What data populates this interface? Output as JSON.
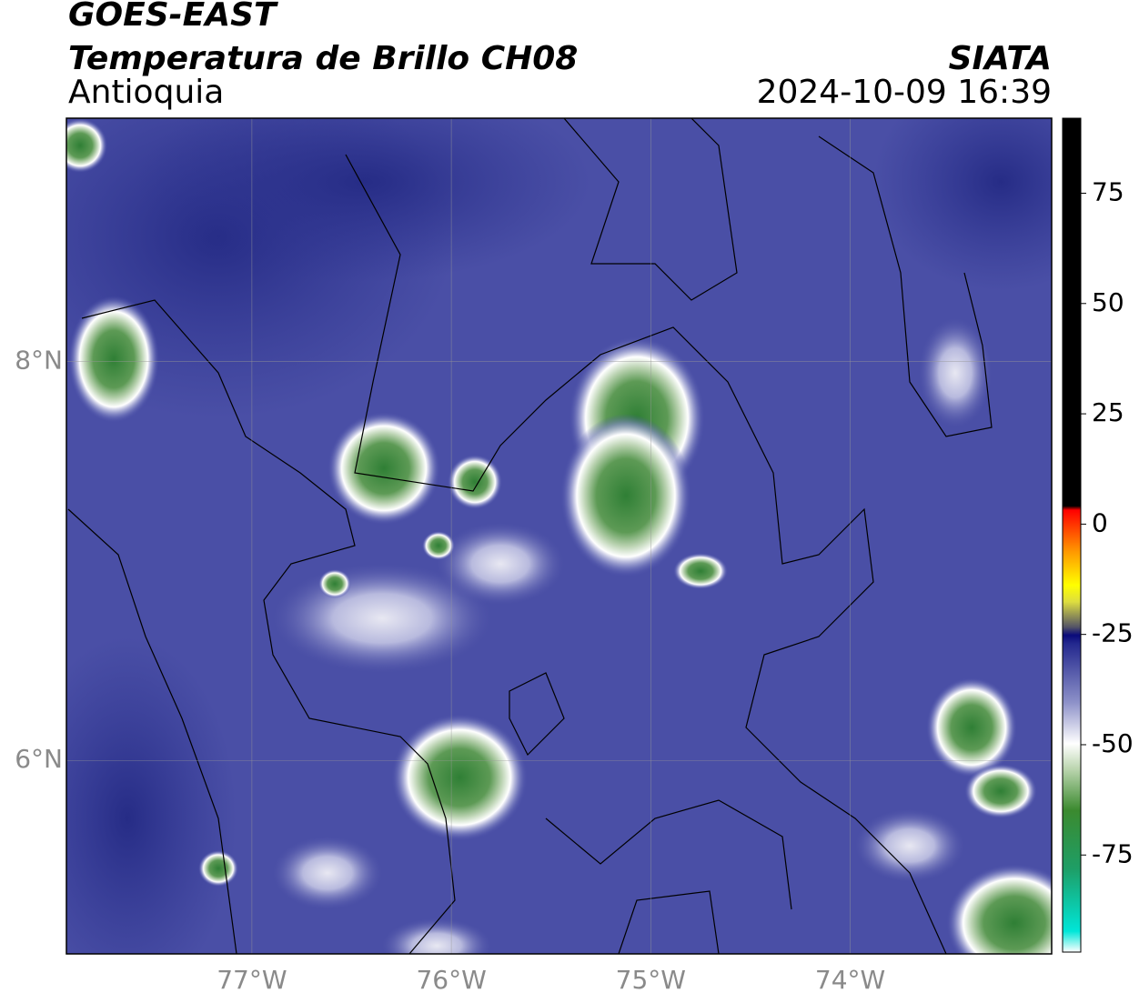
{
  "header": {
    "title": "GOES-EAST",
    "subtitle": "Temperatura de Brillo CH08",
    "region": "Antioquia",
    "source": "SIATA",
    "timestamp": "2024-10-09 16:39"
  },
  "map": {
    "lon_range": [
      -77.93,
      -72.99
    ],
    "lat_range": [
      5.03,
      9.22
    ],
    "lon_ticks": [
      {
        "value": -77,
        "label": "77°W"
      },
      {
        "value": -76,
        "label": "76°W"
      },
      {
        "value": -75,
        "label": "75°W"
      },
      {
        "value": -74,
        "label": "74°W"
      }
    ],
    "lat_ticks": [
      {
        "value": 8,
        "label": "8°N"
      },
      {
        "value": 6,
        "label": "6°N"
      }
    ]
  },
  "colorbar": {
    "range": [
      -97,
      92
    ],
    "ticks": [
      75,
      50,
      25,
      0,
      -25,
      -50,
      -75
    ]
  }
}
